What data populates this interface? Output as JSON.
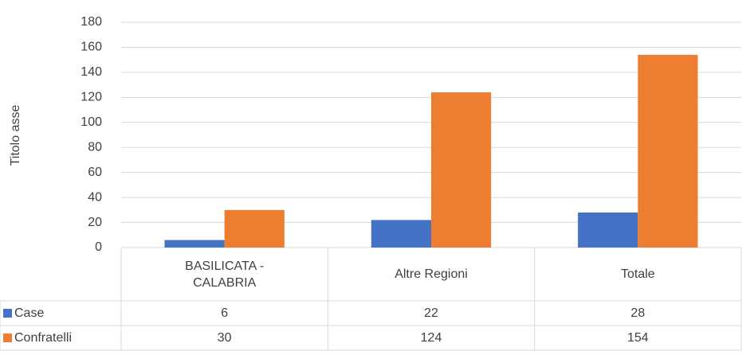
{
  "chart_data": {
    "type": "bar",
    "y_label": "Titolo asse",
    "categories": [
      "BASILICATA - CALABRIA",
      "Altre Regioni",
      "Totale"
    ],
    "series": [
      {
        "name": "Case",
        "color": "#4472c4",
        "values": [
          6,
          22,
          28
        ]
      },
      {
        "name": "Confratelli",
        "color": "#ed7d31",
        "values": [
          30,
          124,
          154
        ]
      }
    ],
    "ylim": [
      0,
      180
    ],
    "yticks": [
      0,
      20,
      40,
      60,
      80,
      100,
      120,
      140,
      160,
      180
    ],
    "grid": true,
    "data_table": true
  }
}
